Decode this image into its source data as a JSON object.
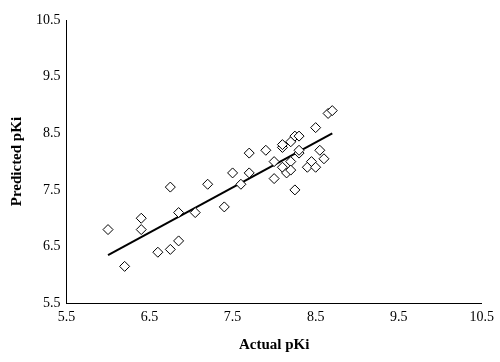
{
  "chart_data": {
    "type": "scatter",
    "x_label": "Actual pKi",
    "y_label": "Predicted pKi",
    "xlim": [
      5.5,
      10.5
    ],
    "ylim": [
      5.5,
      10.5
    ],
    "xticks": [
      5.5,
      6.5,
      7.5,
      8.5,
      9.5,
      10.5
    ],
    "yticks": [
      5.5,
      6.5,
      7.5,
      8.5,
      9.5,
      10.5
    ],
    "grid": false,
    "series": [
      {
        "type": "scatter",
        "marker": "open_diamond",
        "color": "#000000",
        "x": [
          6.0,
          6.2,
          6.4,
          6.4,
          6.6,
          6.75,
          6.75,
          6.85,
          6.85,
          7.05,
          7.2,
          7.4,
          7.5,
          7.6,
          7.7,
          7.7,
          7.9,
          8.0,
          8.0,
          8.1,
          8.1,
          8.15,
          8.2,
          8.2,
          8.2,
          8.25,
          8.25,
          8.3,
          8.3,
          8.4,
          8.45,
          8.5,
          8.5,
          8.55,
          8.6,
          8.65,
          8.7,
          8.3,
          8.1
        ],
        "values": [
          6.8,
          6.15,
          7.0,
          6.8,
          6.4,
          6.45,
          7.55,
          6.6,
          7.1,
          7.1,
          7.6,
          7.2,
          7.8,
          7.6,
          8.15,
          7.8,
          8.2,
          8.0,
          7.7,
          7.9,
          8.25,
          7.8,
          8.35,
          8.0,
          7.85,
          8.45,
          7.5,
          8.15,
          8.2,
          7.9,
          8.0,
          8.6,
          7.9,
          8.2,
          8.05,
          8.85,
          8.9,
          8.45,
          8.3
        ]
      },
      {
        "type": "line",
        "line_style": "solid",
        "color": "#000000",
        "x": [
          6.0,
          8.7
        ],
        "values": [
          6.35,
          8.5
        ]
      }
    ]
  }
}
